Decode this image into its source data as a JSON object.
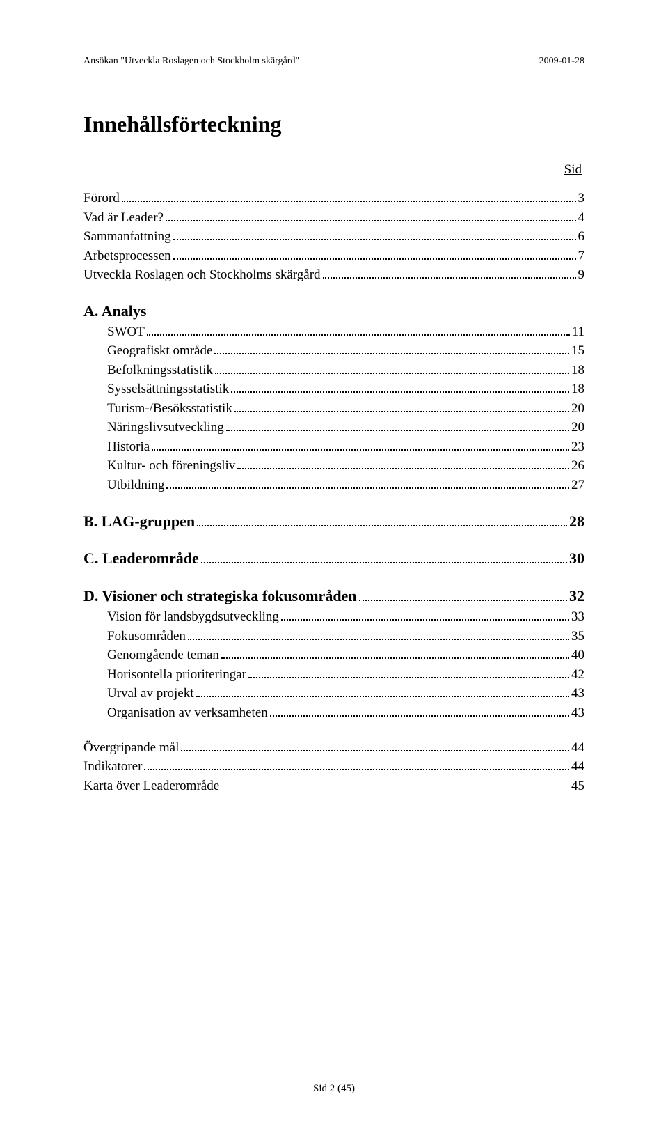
{
  "header": {
    "left": "Ansökan \"Utveckla Roslagen och Stockholm skärgård\"",
    "right": "2009-01-28"
  },
  "title": "Innehållsförteckning",
  "sid_label": "Sid",
  "sections": [
    {
      "type": "block",
      "lines": [
        {
          "label": "Förord",
          "page": "3",
          "indent": false
        },
        {
          "label": "Vad är Leader?",
          "page": "4",
          "indent": false
        },
        {
          "label": "Sammanfattning",
          "page": "6",
          "indent": false
        },
        {
          "label": "Arbetsprocessen",
          "page": "7",
          "indent": false
        },
        {
          "label": "Utveckla Roslagen och Stockholms skärgård",
          "page": "9",
          "indent": false
        }
      ]
    },
    {
      "type": "block",
      "lines": [
        {
          "label": "A. Analys",
          "page": "",
          "indent": false,
          "head": true,
          "noleader": true
        },
        {
          "label": "SWOT",
          "page": "11",
          "indent": true
        },
        {
          "label": "Geografiskt område",
          "page": "15",
          "indent": true
        },
        {
          "label": "Befolkningsstatistik",
          "page": "18",
          "indent": true
        },
        {
          "label": "Sysselsättningsstatistik",
          "page": "18",
          "indent": true
        },
        {
          "label": "Turism-/Besöksstatistik",
          "page": "20",
          "indent": true
        },
        {
          "label": "Näringslivsutveckling",
          "page": "20",
          "indent": true
        },
        {
          "label": "Historia",
          "page": "23",
          "indent": true
        },
        {
          "label": "Kultur- och föreningsliv",
          "page": "26",
          "indent": true
        },
        {
          "label": "Utbildning",
          "page": "27",
          "indent": true
        }
      ]
    },
    {
      "type": "block",
      "lines": [
        {
          "label": "B. LAG-gruppen",
          "page": "28",
          "indent": false,
          "head": true
        }
      ]
    },
    {
      "type": "block",
      "lines": [
        {
          "label": "C. Leaderområde",
          "page": "30",
          "indent": false,
          "head": true
        }
      ]
    },
    {
      "type": "block",
      "lines": [
        {
          "label": "D. Visioner och strategiska fokusområden",
          "page": "32",
          "indent": false,
          "head": true
        },
        {
          "label": "Vision för landsbygdsutveckling",
          "page": "33",
          "indent": true
        },
        {
          "label": "Fokusområden",
          "page": "35",
          "indent": true
        },
        {
          "label": "Genomgående teman",
          "page": "40",
          "indent": true
        },
        {
          "label": "Horisontella prioriteringar",
          "page": "42",
          "indent": true
        },
        {
          "label": "Urval av projekt",
          "page": "43",
          "indent": true
        },
        {
          "label": "Organisation av verksamheten",
          "page": "43",
          "indent": true
        }
      ]
    },
    {
      "type": "block",
      "lines": [
        {
          "label": "Övergripande mål",
          "page": "44",
          "indent": false
        },
        {
          "label": "Indikatorer",
          "page": "44",
          "indent": false
        },
        {
          "label": "Karta över Leaderområde",
          "page": "45",
          "indent": false,
          "noleader": true,
          "simple": true
        }
      ]
    }
  ],
  "footer": "Sid 2 (45)"
}
